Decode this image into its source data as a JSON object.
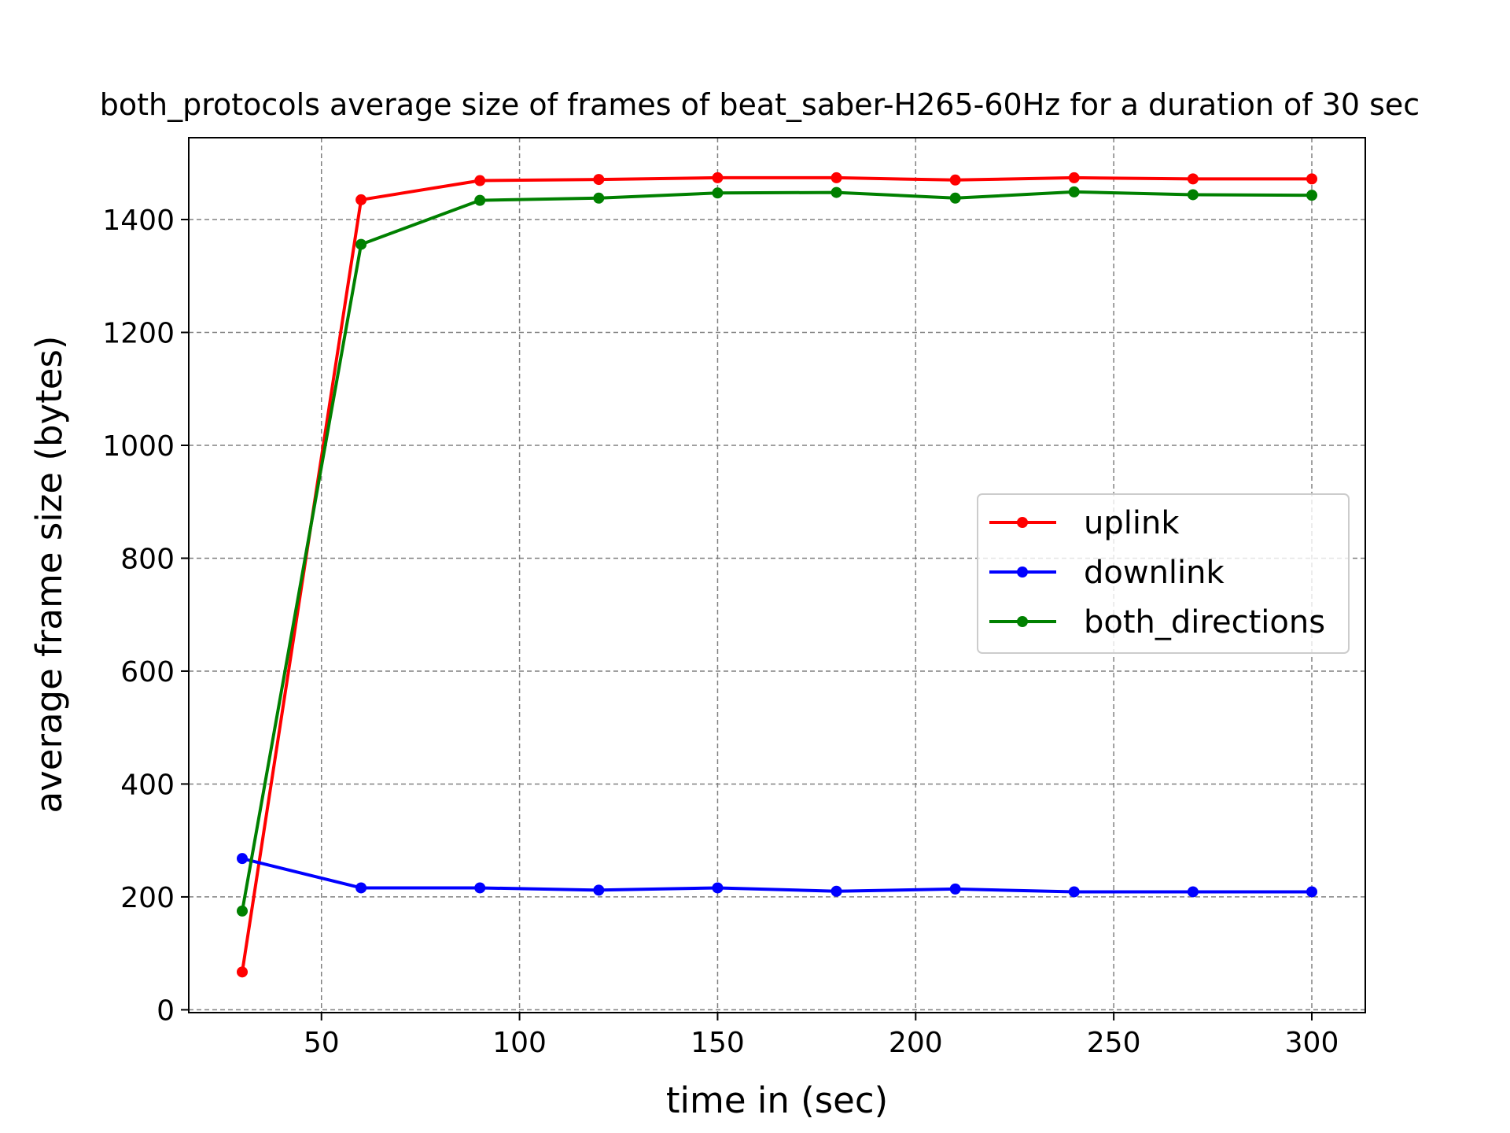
{
  "chart_data": {
    "type": "line",
    "title": "both_protocols average size of frames of beat_saber-H265-60Hz for a duration of 30 sec",
    "xlabel": "time in (sec)",
    "ylabel": "average frame size (bytes)",
    "x": [
      30,
      60,
      90,
      120,
      150,
      180,
      210,
      240,
      270,
      300
    ],
    "xlim": [
      16.5,
      313.5
    ],
    "ylim": [
      -5,
      1545
    ],
    "xticks": [
      50,
      100,
      150,
      200,
      250,
      300
    ],
    "yticks": [
      0,
      200,
      400,
      600,
      800,
      1000,
      1200,
      1400
    ],
    "grid": true,
    "legend_position": "center-right",
    "series": [
      {
        "name": "uplink",
        "color": "#ff0000",
        "values": [
          67,
          1435,
          1469,
          1471,
          1474,
          1474,
          1470,
          1474,
          1472,
          1472
        ]
      },
      {
        "name": "downlink",
        "color": "#0000ff",
        "values": [
          268,
          216,
          216,
          212,
          216,
          210,
          214,
          209,
          209,
          209
        ]
      },
      {
        "name": "both_directions",
        "color": "#008000",
        "values": [
          175,
          1356,
          1434,
          1438,
          1447,
          1448,
          1438,
          1449,
          1444,
          1443
        ]
      }
    ]
  }
}
